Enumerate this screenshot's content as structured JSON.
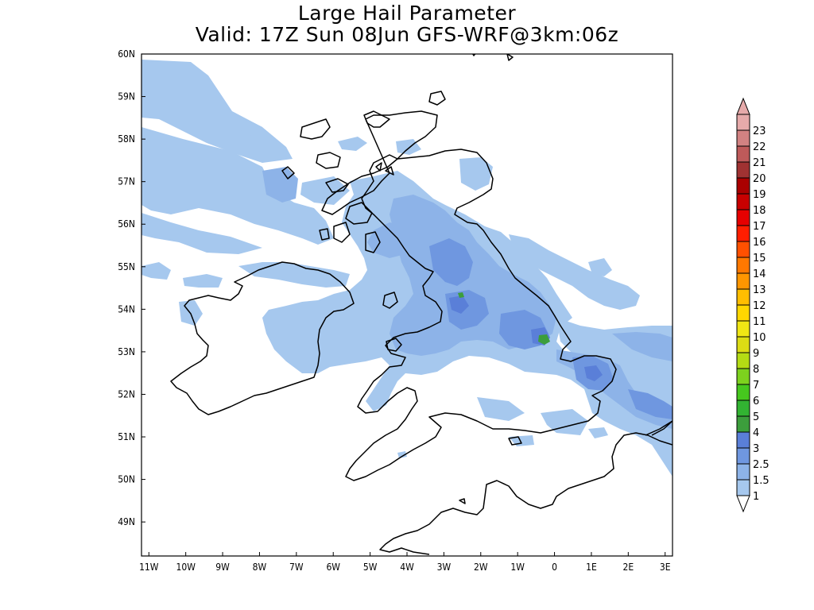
{
  "title": {
    "line1": "Large Hail Parameter",
    "line2": "Valid: 17Z Sun 08Jun GFS-WRF@3km:06z"
  },
  "map": {
    "lon_range": [
      -11.2,
      3.2
    ],
    "lat_range": [
      48.2,
      60.0
    ],
    "x_ticks": [
      "11W",
      "10W",
      "9W",
      "8W",
      "7W",
      "6W",
      "5W",
      "4W",
      "3W",
      "2W",
      "1W",
      "0",
      "1E",
      "2E",
      "3E"
    ],
    "y_ticks": [
      "60N",
      "59N",
      "58N",
      "57N",
      "56N",
      "55N",
      "54N",
      "53N",
      "52N",
      "51N",
      "50N",
      "49N"
    ],
    "coastline_color": "#000000"
  },
  "colorbar": {
    "labels": [
      "1",
      "1.5",
      "2.5",
      "3",
      "4",
      "5",
      "6",
      "7",
      "8",
      "9",
      "10",
      "11",
      "12",
      "13",
      "14",
      "15",
      "16",
      "17",
      "18",
      "19",
      "20",
      "21",
      "22",
      "23"
    ],
    "colors": [
      "#a6c8ee",
      "#8db3e8",
      "#6f97e0",
      "#5a7fd8",
      "#3c9e3c",
      "#32b432",
      "#46c81e",
      "#7dd21e",
      "#b4dc14",
      "#dcdc14",
      "#f0e614",
      "#ffd700",
      "#ffbe00",
      "#ff9600",
      "#ff7800",
      "#ff5000",
      "#ff1e00",
      "#e60000",
      "#c80000",
      "#aa0000",
      "#a03232",
      "#be5a5a",
      "#d28282",
      "#e6aaaa"
    ],
    "under_color": "#ffffff",
    "over_color": "#e6aaaa"
  }
}
